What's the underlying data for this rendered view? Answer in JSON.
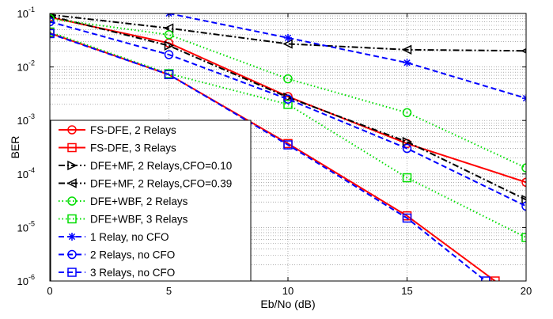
{
  "chart_data": {
    "type": "line",
    "xlabel": "Eb/No (dB)",
    "ylabel": "BER",
    "xlim": [
      0,
      20
    ],
    "ylim": [
      1e-06,
      0.1
    ],
    "yscale": "log",
    "grid": true,
    "legend_position": "bottom-left",
    "x_ticks": [
      0,
      5,
      10,
      15,
      20
    ],
    "x_tick_labels": [
      "0",
      "5",
      "10",
      "15",
      "20"
    ],
    "y_ticks": [
      1e-06,
      1e-05,
      0.0001,
      0.001,
      0.01,
      0.1
    ],
    "y_tick_labels": [
      {
        "base": "10",
        "exp": "-6"
      },
      {
        "base": "10",
        "exp": "-5"
      },
      {
        "base": "10",
        "exp": "-4"
      },
      {
        "base": "10",
        "exp": "-3"
      },
      {
        "base": "10",
        "exp": "-2"
      },
      {
        "base": "10",
        "exp": "-1"
      }
    ],
    "series": [
      {
        "name": "FS-DFE, 2 Relays",
        "color": "#ff0000",
        "dash": "solid",
        "marker": "circle",
        "x": [
          0,
          5,
          10,
          15,
          20
        ],
        "y": [
          0.085,
          0.028,
          0.0028,
          0.00037,
          7e-05
        ]
      },
      {
        "name": "FS-DFE, 3 Relays",
        "color": "#ff0000",
        "dash": "solid",
        "marker": "square",
        "x": [
          0,
          5,
          10,
          15,
          18.7
        ],
        "y": [
          0.043,
          0.0072,
          0.00037,
          1.65e-05,
          1e-06
        ]
      },
      {
        "name": "DFE+MF, 2 Relays,CFO=0.10",
        "color": "#000000",
        "dash": "dashdot",
        "marker": "triangle-right",
        "x": [
          0,
          5,
          10,
          15,
          20
        ],
        "y": [
          0.09,
          0.025,
          0.0027,
          0.0004,
          3.3e-05
        ]
      },
      {
        "name": "DFE+MF, 2 Relays,CFO=0.39",
        "color": "#000000",
        "dash": "dashdot",
        "marker": "triangle-left",
        "x": [
          0,
          5,
          10,
          15,
          20
        ],
        "y": [
          0.095,
          0.053,
          0.027,
          0.021,
          0.02
        ]
      },
      {
        "name": "DFE+WBF, 2 Relays",
        "color": "#00dd00",
        "dash": "dotted",
        "marker": "circle",
        "x": [
          0,
          5,
          10,
          15,
          20
        ],
        "y": [
          0.08,
          0.04,
          0.006,
          0.0014,
          0.00013
        ]
      },
      {
        "name": "DFE+WBF, 3 Relays",
        "color": "#00dd00",
        "dash": "dotted",
        "marker": "square",
        "x": [
          0,
          5,
          10,
          15,
          20
        ],
        "y": [
          0.045,
          0.0075,
          0.002,
          8.5e-05,
          6.5e-06
        ]
      },
      {
        "name": "1 Relay, no CFO",
        "color": "#0000ff",
        "dash": "dashed",
        "marker": "star",
        "x": [
          5,
          10,
          15,
          20
        ],
        "y": [
          0.1,
          0.035,
          0.012,
          0.0026
        ]
      },
      {
        "name": "2 Relays, no CFO",
        "color": "#0000ff",
        "dash": "dashed",
        "marker": "circle",
        "x": [
          0,
          5,
          10,
          15,
          20
        ],
        "y": [
          0.07,
          0.017,
          0.0025,
          0.0003,
          2.5e-05
        ]
      },
      {
        "name": "3 Relays, no CFO",
        "color": "#0000ff",
        "dash": "dashed",
        "marker": "square",
        "x": [
          0,
          5,
          10,
          15,
          18.3
        ],
        "y": [
          0.042,
          0.0072,
          0.00035,
          1.5e-05,
          1e-06
        ]
      }
    ]
  }
}
